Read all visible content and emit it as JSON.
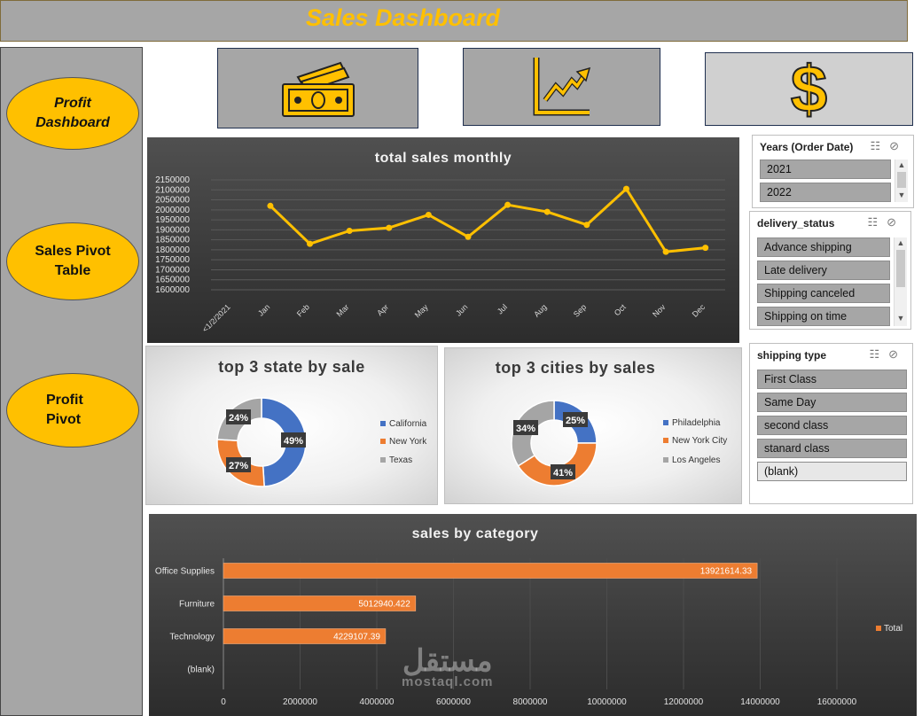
{
  "header": {
    "title": "Sales Dashboard"
  },
  "sidebar": {
    "buttons": [
      {
        "label": "Profit Dashboard"
      },
      {
        "label": "Sales Pivot Table"
      },
      {
        "label": "Profit Pivot"
      }
    ]
  },
  "kpi_icons": [
    "money-icon",
    "trend-up-icon",
    "dollar-icon"
  ],
  "colors": {
    "accent": "#ffc000",
    "blue": "#4472c4",
    "orange": "#ed7d31",
    "gray": "#a5a5a5"
  },
  "slicers": {
    "years": {
      "title": "Years (Order Date)",
      "items": [
        "2021",
        "2022"
      ]
    },
    "delivery": {
      "title": "delivery_status",
      "items": [
        "Advance shipping",
        "Late delivery",
        "Shipping canceled",
        "Shipping on time"
      ]
    },
    "shipping": {
      "title": "shipping type",
      "items": [
        "First Class",
        "Same Day",
        "second class",
        "stanard class",
        "(blank)"
      ]
    }
  },
  "chart_data": [
    {
      "type": "line",
      "title": "total sales monthly",
      "categories": [
        "<1/2/2021",
        "Jan",
        "Feb",
        "Mar",
        "Apr",
        "May",
        "Jun",
        "Jul",
        "Aug",
        "Sep",
        "Oct",
        "Nov",
        "Dec"
      ],
      "series": [
        {
          "values": [
            null,
            2020000,
            1830000,
            1895000,
            1910000,
            1975000,
            1865000,
            2025000,
            1990000,
            1925000,
            2105000,
            1790000,
            1810000
          ]
        }
      ],
      "ylim": [
        1600000,
        2150000
      ],
      "yticks": [
        "2150000",
        "2100000",
        "2050000",
        "2000000",
        "1950000",
        "1900000",
        "1850000",
        "1800000",
        "1750000",
        "1700000",
        "1650000",
        "1600000"
      ],
      "color": "#ffc000"
    },
    {
      "type": "pie",
      "title": "top 3 state by sale",
      "categories": [
        "California",
        "New York",
        "Texas"
      ],
      "values": [
        49,
        27,
        24
      ],
      "labels": [
        "49%",
        "27%",
        "24%"
      ],
      "legend": "right"
    },
    {
      "type": "pie",
      "title": "top 3 cities by sales",
      "categories": [
        "Philadelphia",
        "New York City",
        "Los Angeles"
      ],
      "values": [
        25,
        41,
        34
      ],
      "labels": [
        "25%",
        "41%",
        "34%"
      ],
      "legend": "right"
    },
    {
      "type": "bar",
      "title": "sales by category",
      "categories": [
        "Office Supplies",
        "Furniture",
        "Technology",
        "(blank)"
      ],
      "series": [
        {
          "name": "Total",
          "values": [
            13921614.33,
            5012940.422,
            4229107.39,
            null
          ]
        }
      ],
      "value_labels": [
        "13921614.33",
        "5012940.422",
        "4229107.39",
        ""
      ],
      "xlim": [
        0,
        16000000
      ],
      "xticks": [
        "0",
        "2000000",
        "4000000",
        "6000000",
        "8000000",
        "10000000",
        "12000000",
        "14000000",
        "16000000"
      ],
      "legend": "right"
    }
  ],
  "watermark": {
    "arabic": "مستقل",
    "latin": "mostaql.com"
  }
}
